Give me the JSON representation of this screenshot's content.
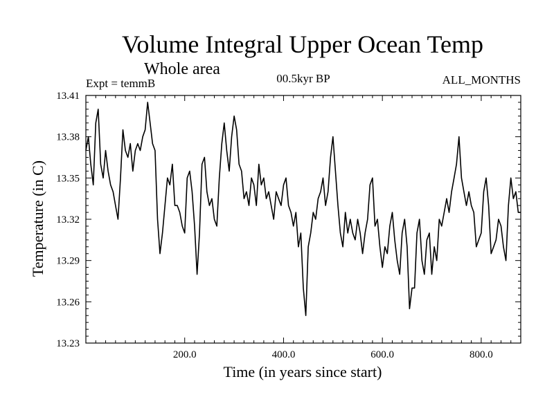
{
  "chart_data": {
    "type": "line",
    "title": "Volume Integral Upper Ocean Temp",
    "subtitle": "Whole area",
    "left_label": "Expt = temmB",
    "center_label": "00.5kyr BP",
    "right_label": "ALL_MONTHS",
    "xlabel": "Time (in years since start)",
    "ylabel": "Temperature (in C)",
    "xlim": [
      0,
      880
    ],
    "ylim": [
      13.23,
      13.41
    ],
    "xticks": [
      200,
      400,
      600,
      800
    ],
    "xtick_labels": [
      "200.0",
      "400.0",
      "600.0",
      "800.0"
    ],
    "yticks": [
      13.23,
      13.26,
      13.29,
      13.32,
      13.35,
      13.38,
      13.41
    ],
    "ytick_labels": [
      "13.23",
      "13.26",
      "13.29",
      "13.32",
      "13.35",
      "13.38",
      "13.41"
    ],
    "grid": false,
    "series": [
      {
        "name": "temmB",
        "color": "#000000",
        "x": [
          0,
          5,
          10,
          15,
          20,
          25,
          30,
          35,
          40,
          45,
          50,
          55,
          60,
          65,
          70,
          75,
          80,
          85,
          90,
          95,
          100,
          105,
          110,
          115,
          120,
          125,
          130,
          135,
          140,
          145,
          150,
          155,
          160,
          165,
          170,
          175,
          180,
          185,
          190,
          195,
          200,
          205,
          210,
          215,
          220,
          225,
          230,
          235,
          240,
          245,
          250,
          255,
          260,
          265,
          270,
          275,
          280,
          285,
          290,
          295,
          300,
          305,
          310,
          315,
          320,
          325,
          330,
          335,
          340,
          345,
          350,
          355,
          360,
          365,
          370,
          375,
          380,
          385,
          390,
          395,
          400,
          405,
          410,
          415,
          420,
          425,
          430,
          435,
          440,
          445,
          450,
          455,
          460,
          465,
          470,
          475,
          480,
          485,
          490,
          495,
          500,
          505,
          510,
          515,
          520,
          525,
          530,
          535,
          540,
          545,
          550,
          555,
          560,
          565,
          570,
          575,
          580,
          585,
          590,
          595,
          600,
          605,
          610,
          615,
          620,
          625,
          630,
          635,
          640,
          645,
          650,
          655,
          660,
          665,
          670,
          675,
          680,
          685,
          690,
          695,
          700,
          705,
          710,
          715,
          720,
          725,
          730,
          735,
          740,
          745,
          750,
          755,
          760,
          765,
          770,
          775,
          780,
          785,
          790,
          795,
          800,
          805,
          810,
          815,
          820,
          825,
          830,
          835,
          840,
          845,
          850,
          855,
          860,
          865,
          870,
          875,
          880
        ],
        "values": [
          13.37,
          13.38,
          13.36,
          13.345,
          13.39,
          13.4,
          13.36,
          13.35,
          13.37,
          13.355,
          13.345,
          13.34,
          13.33,
          13.32,
          13.35,
          13.385,
          13.37,
          13.365,
          13.375,
          13.355,
          13.37,
          13.375,
          13.37,
          13.38,
          13.385,
          13.405,
          13.39,
          13.375,
          13.37,
          13.32,
          13.295,
          13.31,
          13.33,
          13.35,
          13.345,
          13.36,
          13.33,
          13.33,
          13.325,
          13.315,
          13.31,
          13.35,
          13.355,
          13.34,
          13.315,
          13.28,
          13.31,
          13.36,
          13.365,
          13.34,
          13.33,
          13.335,
          13.32,
          13.315,
          13.35,
          13.375,
          13.39,
          13.37,
          13.355,
          13.38,
          13.395,
          13.385,
          13.36,
          13.355,
          13.335,
          13.34,
          13.33,
          13.35,
          13.345,
          13.33,
          13.36,
          13.345,
          13.35,
          13.335,
          13.34,
          13.33,
          13.32,
          13.34,
          13.335,
          13.33,
          13.345,
          13.35,
          13.33,
          13.325,
          13.315,
          13.325,
          13.3,
          13.31,
          13.27,
          13.25,
          13.3,
          13.31,
          13.325,
          13.32,
          13.335,
          13.34,
          13.35,
          13.33,
          13.34,
          13.365,
          13.38,
          13.355,
          13.33,
          13.31,
          13.3,
          13.325,
          13.31,
          13.32,
          13.31,
          13.305,
          13.32,
          13.31,
          13.295,
          13.31,
          13.32,
          13.345,
          13.35,
          13.315,
          13.32,
          13.3,
          13.285,
          13.3,
          13.295,
          13.315,
          13.325,
          13.305,
          13.29,
          13.28,
          13.31,
          13.32,
          13.3,
          13.255,
          13.27,
          13.27,
          13.31,
          13.32,
          13.29,
          13.28,
          13.305,
          13.31,
          13.28,
          13.3,
          13.29,
          13.32,
          13.315,
          13.325,
          13.335,
          13.325,
          13.34,
          13.35,
          13.36,
          13.38,
          13.35,
          13.34,
          13.33,
          13.34,
          13.33,
          13.325,
          13.3,
          13.305,
          13.31,
          13.34,
          13.35,
          13.33,
          13.295,
          13.3,
          13.305,
          13.32,
          13.315,
          13.3,
          13.29,
          13.33,
          13.35,
          13.335,
          13.34,
          13.325,
          13.325
        ]
      }
    ]
  }
}
